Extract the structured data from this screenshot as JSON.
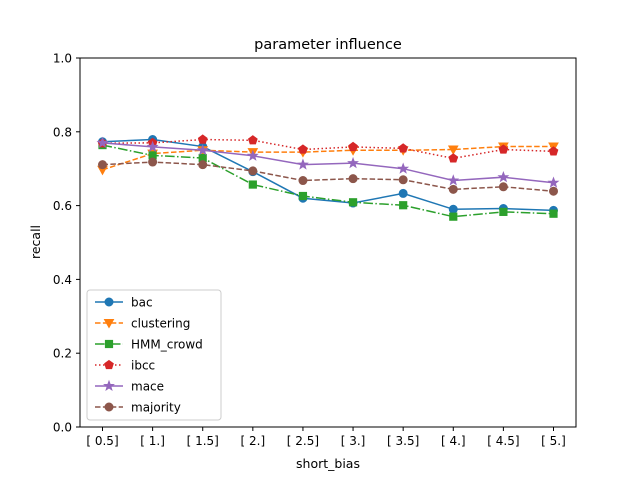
{
  "chart_data": {
    "type": "line",
    "title": "parameter influence",
    "xlabel": "short_bias",
    "ylabel": "recall",
    "categories": [
      "[ 0.5]",
      "[ 1.]",
      "[ 1.5]",
      "[ 2.]",
      "[ 2.5]",
      "[ 3.]",
      "[ 3.5]",
      "[ 4.]",
      "[ 4.5]",
      "[ 5.]"
    ],
    "ylim": [
      0,
      1
    ],
    "yticks": [
      "0.0",
      "0.2",
      "0.4",
      "0.6",
      "0.8",
      "1.0"
    ],
    "grid": false,
    "legend_position": "lower-left",
    "series": [
      {
        "name": "bac",
        "color": "#1f77b4",
        "dash": "solid",
        "marker": "circle",
        "values": [
          0.773,
          0.779,
          0.76,
          0.692,
          0.62,
          0.607,
          0.633,
          0.59,
          0.592,
          0.587
        ]
      },
      {
        "name": "clustering",
        "color": "#ff7f0e",
        "dash": "dashed",
        "marker": "triangle-down",
        "values": [
          0.697,
          0.741,
          0.75,
          0.745,
          0.745,
          0.75,
          0.75,
          0.752,
          0.76,
          0.76
        ]
      },
      {
        "name": "HMM_crowd",
        "color": "#2ca02c",
        "dash": "dashdot",
        "marker": "square",
        "values": [
          0.764,
          0.736,
          0.729,
          0.657,
          0.626,
          0.609,
          0.601,
          0.57,
          0.583,
          0.578
        ]
      },
      {
        "name": "ibcc",
        "color": "#d62728",
        "dash": "dotted",
        "marker": "pentagon",
        "values": [
          0.769,
          0.77,
          0.779,
          0.777,
          0.752,
          0.759,
          0.755,
          0.728,
          0.752,
          0.747
        ]
      },
      {
        "name": "mace",
        "color": "#9467bd",
        "dash": "solid",
        "marker": "star",
        "values": [
          0.77,
          0.759,
          0.75,
          0.735,
          0.711,
          0.715,
          0.7,
          0.668,
          0.677,
          0.662
        ]
      },
      {
        "name": "majority",
        "color": "#8c564b",
        "dash": "dashed",
        "marker": "circle",
        "values": [
          0.711,
          0.718,
          0.711,
          0.694,
          0.668,
          0.673,
          0.67,
          0.644,
          0.651,
          0.639
        ]
      }
    ]
  }
}
